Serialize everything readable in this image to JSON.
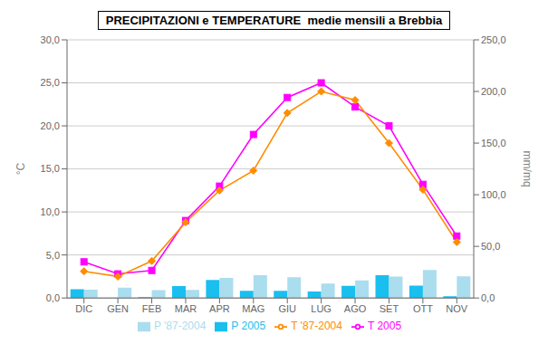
{
  "chart_data": {
    "type": "bar",
    "title": "PRECIPITAZIONI e TEMPERATURE  medie mensili a Brebbia",
    "categories": [
      "DIC",
      "GEN",
      "FEB",
      "MAR",
      "APR",
      "MAG",
      "GIU",
      "LUG",
      "AGO",
      "SET",
      "OTT",
      "NOV"
    ],
    "series": [
      {
        "name": "P 2005",
        "type": "bar",
        "axis": "y2",
        "color": "#1ABFEF",
        "values": [
          8.5,
          0.1,
          0.8,
          11.5,
          17.5,
          7.0,
          7.0,
          6.2,
          11.8,
          22.0,
          12.0,
          1.6
        ]
      },
      {
        "name": "P '87-2004",
        "type": "bar",
        "axis": "y2",
        "color": "#AADDEE",
        "values": [
          8.0,
          10.0,
          7.7,
          7.8,
          19.5,
          22.0,
          20.2,
          14.0,
          17.0,
          20.8,
          27.0,
          21.0
        ]
      },
      {
        "name": "T 2005",
        "type": "line",
        "axis": "y",
        "color": "#FF00FF",
        "marker": "square",
        "values": [
          4.2,
          2.8,
          3.2,
          9.0,
          13.0,
          19.0,
          23.3,
          25.0,
          22.2,
          20.0,
          13.2,
          7.2
        ]
      },
      {
        "name": "T '87-2004",
        "type": "line",
        "axis": "y",
        "color": "#FF8C00",
        "marker": "diamond",
        "values": [
          3.1,
          2.5,
          4.3,
          8.8,
          12.5,
          14.8,
          21.5,
          24.0,
          23.0,
          18.0,
          12.6,
          6.5
        ]
      }
    ],
    "ylabel": "°C",
    "y2label": "mm/mq",
    "ylim": [
      0,
      30
    ],
    "yticks": [
      {
        "value": 0,
        "label": "0,0"
      },
      {
        "value": 5,
        "label": "5,0"
      },
      {
        "value": 10,
        "label": "10,0"
      },
      {
        "value": 15,
        "label": "15,0"
      },
      {
        "value": 20,
        "label": "20,0"
      },
      {
        "value": 25,
        "label": "25,0"
      },
      {
        "value": 30,
        "label": "30,0"
      }
    ],
    "y2lim": [
      0,
      250
    ],
    "y2ticks": [
      {
        "value": 0,
        "label": "0,0"
      },
      {
        "value": 50,
        "label": "50,0"
      },
      {
        "value": 100,
        "label": "100,0"
      },
      {
        "value": 150,
        "label": "150,0"
      },
      {
        "value": 200,
        "label": "200,0"
      },
      {
        "value": 250,
        "label": "250,0"
      }
    ],
    "grid": true,
    "legend": "bottom"
  }
}
